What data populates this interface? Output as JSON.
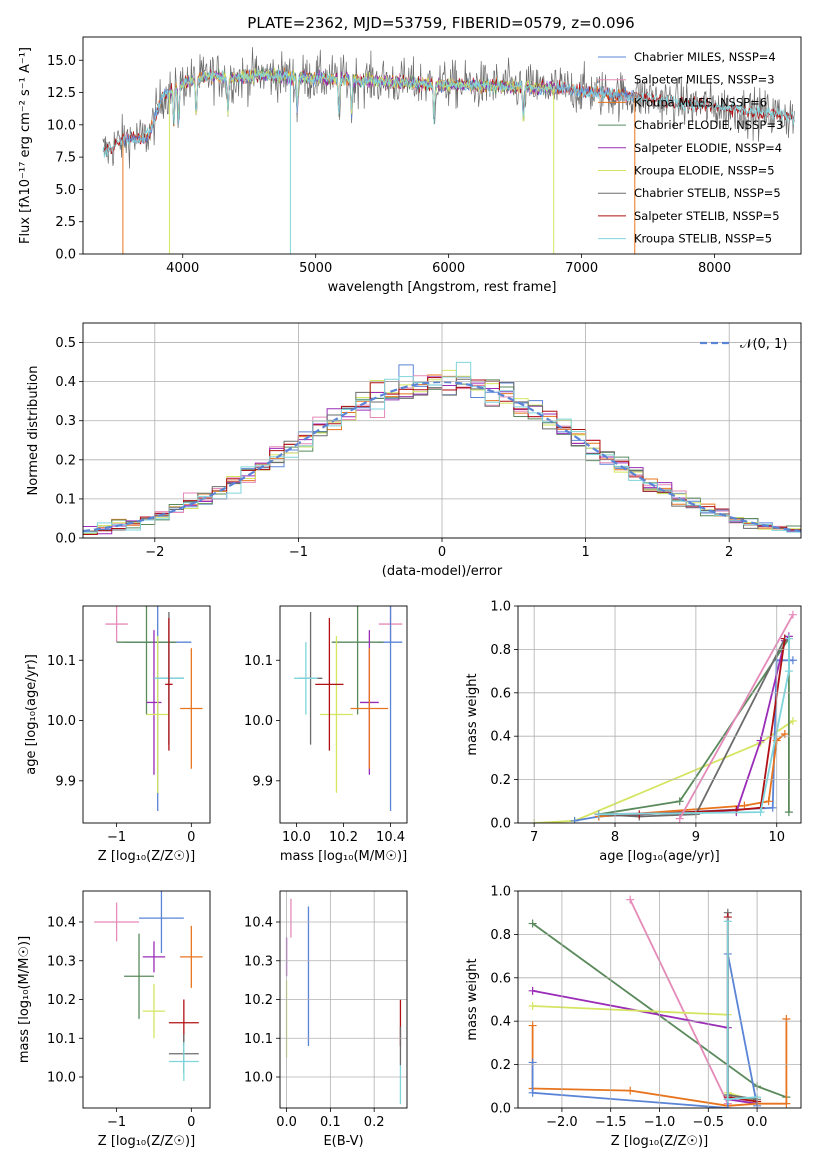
{
  "colors": {
    "blue": "#5a84d6",
    "orange": "#e8751e",
    "pink": "#e58ab9",
    "green": "#5a8a5c",
    "purple": "#9a2cb7",
    "yellow": "#d5e562",
    "gray": "#6b6b6b",
    "red": "#b01014",
    "cyan": "#7fd5dc"
  },
  "chart_data": [
    {
      "id": "spectrum",
      "type": "line",
      "title": "PLATE=2362, MJD=53759, FIBERID=0579, z=0.096",
      "xlabel": "wavelength [Angstrom, rest frame]",
      "ylabel": "Flux [fλ10⁻¹⁷ erg cm⁻² s⁻¹ A⁻¹]",
      "xlim": [
        3250,
        8650
      ],
      "ylim": [
        0,
        16.8
      ],
      "xticks": [
        4000,
        5000,
        6000,
        7000,
        8000
      ],
      "yticks": [
        0.0,
        2.5,
        5.0,
        7.5,
        10.0,
        12.5,
        15.0
      ],
      "grid": false,
      "legend_position": "upper right",
      "series": [
        {
          "name": "Chabrier MILES, NSSP=4",
          "color_key": "blue",
          "x_range": [
            3540,
            7400
          ]
        },
        {
          "name": "Salpeter MILES, NSSP=3",
          "color_key": "pink",
          "x_range": [
            3540,
            7400
          ]
        },
        {
          "name": "Kroupa MILES, NSSP=6",
          "color_key": "orange",
          "x_range": [
            3540,
            7400
          ]
        },
        {
          "name": "Chabrier ELODIE, NSSP=3",
          "color_key": "green",
          "x_range": [
            3900,
            6800
          ]
        },
        {
          "name": "Salpeter ELODIE, NSSP=4",
          "color_key": "purple",
          "x_range": [
            3900,
            6800
          ]
        },
        {
          "name": "Kroupa ELODIE, NSSP=5",
          "color_key": "yellow",
          "x_range": [
            3900,
            6800
          ]
        },
        {
          "name": "Chabrier STELIB, NSSP=5",
          "color_key": "gray",
          "x_range": [
            3400,
            8600
          ]
        },
        {
          "name": "Salpeter STELIB, NSSP=5",
          "color_key": "red",
          "x_range": [
            3400,
            8600
          ]
        },
        {
          "name": "Kroupa STELIB, NSSP=5",
          "color_key": "cyan",
          "x_range": [
            3400,
            8600
          ]
        }
      ],
      "continuum": {
        "x": [
          3450,
          3500,
          3600,
          3700,
          3750,
          3850,
          3900,
          4000,
          4200,
          4400,
          4600,
          4800,
          5000,
          5300,
          5600,
          6000,
          6400,
          6800,
          7000,
          7200,
          7500,
          7800,
          8000,
          8300,
          8600
        ],
        "y": [
          8.0,
          8.6,
          9.0,
          8.9,
          9.3,
          12.3,
          12.5,
          13.2,
          13.8,
          13.6,
          13.9,
          13.7,
          13.6,
          13.5,
          13.3,
          13.1,
          13.0,
          12.8,
          12.7,
          12.4,
          12.1,
          11.6,
          11.4,
          11.0,
          10.6
        ]
      }
    },
    {
      "id": "residuals",
      "type": "step",
      "xlabel": "(data-model)/error",
      "ylabel": "Normed distribution",
      "xlim": [
        -2.5,
        2.5
      ],
      "ylim": [
        0,
        0.55
      ],
      "xticks": [
        -2,
        -1,
        0,
        1,
        2
      ],
      "xtick_labels": [
        "−2",
        "−1",
        "0",
        "1",
        "2"
      ],
      "yticks": [
        0.0,
        0.1,
        0.2,
        0.3,
        0.4,
        0.5
      ],
      "grid": true,
      "legend": [
        {
          "name": "𝒩(0, 1)",
          "color_key": "blue",
          "style": "dashed"
        }
      ],
      "bin_width": 0.1,
      "bin_start": -2.5,
      "noise_amplitude": 0.045
    },
    {
      "id": "age-vs-Z",
      "type": "errorbar",
      "xlabel": "Z [log₁₀(Z/Z☉)]",
      "ylabel": "age  [log₁₀(age/yr)]",
      "xlim": [
        -1.45,
        0.25
      ],
      "ylim": [
        9.83,
        10.19
      ],
      "xticks": [
        -1,
        0
      ],
      "xtick_labels": [
        "−1",
        "0"
      ],
      "yticks": [
        9.9,
        10.0,
        10.1
      ],
      "grid": false,
      "points": [
        {
          "color_key": "pink",
          "x": -1.0,
          "y": 10.16,
          "xerr": 0.15,
          "yerr": 0.03
        },
        {
          "color_key": "blue",
          "x": -0.45,
          "y": 10.13,
          "xerr": 0.45,
          "yerr": 0.28
        },
        {
          "color_key": "green",
          "x": -0.6,
          "y": 10.13,
          "xerr": 0.4,
          "yerr": 0.12
        },
        {
          "color_key": "purple",
          "x": -0.5,
          "y": 10.03,
          "xerr": 0.1,
          "yerr": 0.12
        },
        {
          "color_key": "yellow",
          "x": -0.45,
          "y": 10.01,
          "xerr": 0.15,
          "yerr": 0.13
        },
        {
          "color_key": "gray",
          "x": -0.3,
          "y": 10.07,
          "xerr": 0.2,
          "yerr": 0.11
        },
        {
          "color_key": "cyan",
          "x": -0.3,
          "y": 10.07,
          "xerr": 0.2,
          "yerr": 0.06
        },
        {
          "color_key": "red",
          "x": -0.3,
          "y": 10.06,
          "xerr": 0.05,
          "yerr": 0.11
        },
        {
          "color_key": "orange",
          "x": 0.0,
          "y": 10.02,
          "xerr": 0.15,
          "yerr": 0.1
        }
      ]
    },
    {
      "id": "age-vs-mass",
      "type": "errorbar",
      "xlabel": "mass [log₁₀(M/M☉)]",
      "xlim": [
        9.93,
        10.47
      ],
      "ylim": [
        9.83,
        10.19
      ],
      "xticks": [
        10.0,
        10.2,
        10.4
      ],
      "yticks": [
        9.9,
        10.0,
        10.1
      ],
      "grid": false,
      "points": [
        {
          "color_key": "pink",
          "x": 10.4,
          "y": 10.16,
          "xerr": 0.05,
          "yerr": 0.03
        },
        {
          "color_key": "blue",
          "x": 10.4,
          "y": 10.13,
          "xerr": 0.05,
          "yerr": 0.28
        },
        {
          "color_key": "green",
          "x": 10.26,
          "y": 10.13,
          "xerr": 0.11,
          "yerr": 0.12
        },
        {
          "color_key": "purple",
          "x": 10.31,
          "y": 10.03,
          "xerr": 0.04,
          "yerr": 0.12
        },
        {
          "color_key": "yellow",
          "x": 10.17,
          "y": 10.01,
          "xerr": 0.07,
          "yerr": 0.13
        },
        {
          "color_key": "gray",
          "x": 10.06,
          "y": 10.07,
          "xerr": 0.05,
          "yerr": 0.11
        },
        {
          "color_key": "cyan",
          "x": 10.04,
          "y": 10.07,
          "xerr": 0.05,
          "yerr": 0.06
        },
        {
          "color_key": "red",
          "x": 10.14,
          "y": 10.06,
          "xerr": 0.06,
          "yerr": 0.11
        },
        {
          "color_key": "orange",
          "x": 10.31,
          "y": 10.02,
          "xerr": 0.08,
          "yerr": 0.1
        }
      ]
    },
    {
      "id": "cumulative-age",
      "type": "line",
      "xlabel": "age  [log₁₀(age/yr)]",
      "ylabel": "mass weight",
      "xlim": [
        6.8,
        10.3
      ],
      "ylim": [
        0,
        1
      ],
      "xticks": [
        7,
        8,
        9,
        10
      ],
      "yticks": [
        0.0,
        0.2,
        0.4,
        0.6,
        0.8,
        1.0
      ],
      "grid": true,
      "series": [
        {
          "color_key": "yellow",
          "x": [
            7.0,
            7.5,
            9.8,
            10.2
          ],
          "y": [
            0.0,
            0.01,
            0.37,
            0.47
          ]
        },
        {
          "color_key": "blue",
          "x": [
            7.5,
            7.8,
            9.95,
            10.0,
            10.2
          ],
          "y": [
            0.01,
            0.03,
            0.07,
            0.75,
            0.75
          ]
        },
        {
          "color_key": "orange",
          "x": [
            7.8,
            9.6,
            9.9,
            10.0,
            10.1
          ],
          "y": [
            0.03,
            0.08,
            0.1,
            0.38,
            0.41
          ]
        },
        {
          "color_key": "purple",
          "x": [
            7.8,
            9.5,
            9.8,
            10.1,
            10.15
          ],
          "y": [
            0.04,
            0.05,
            0.38,
            0.84,
            0.86
          ]
        },
        {
          "color_key": "green",
          "x": [
            7.8,
            8.8,
            10.15,
            10.15
          ],
          "y": [
            0.04,
            0.1,
            0.85,
            0.05
          ]
        },
        {
          "color_key": "gray",
          "x": [
            7.8,
            8.3,
            9.0,
            10.1
          ],
          "y": [
            0.04,
            0.03,
            0.04,
            0.85
          ]
        },
        {
          "color_key": "red",
          "x": [
            7.8,
            8.3,
            9.5,
            9.8,
            10.1
          ],
          "y": [
            0.04,
            0.04,
            0.06,
            0.07,
            0.85
          ]
        },
        {
          "color_key": "cyan",
          "x": [
            7.8,
            9.8,
            10.15,
            10.15
          ],
          "y": [
            0.04,
            0.05,
            0.7,
            0.85
          ]
        },
        {
          "color_key": "pink",
          "x": [
            8.8,
            10.2
          ],
          "y": [
            0.02,
            0.96
          ]
        }
      ]
    },
    {
      "id": "mass-vs-Z",
      "type": "errorbar",
      "xlabel": "Z [log₁₀(Z/Z☉)]",
      "ylabel": "mass [log₁₀(M/M☉)]",
      "xlim": [
        -1.45,
        0.25
      ],
      "ylim": [
        9.92,
        10.48
      ],
      "xticks": [
        -1,
        0
      ],
      "xtick_labels": [
        "−1",
        "0"
      ],
      "yticks": [
        10.0,
        10.1,
        10.2,
        10.3,
        10.4
      ],
      "grid": false,
      "points": [
        {
          "color_key": "pink",
          "x": -1.0,
          "y": 10.4,
          "xerr": 0.3,
          "yerr": 0.05
        },
        {
          "color_key": "blue",
          "x": -0.4,
          "y": 10.41,
          "xerr": 0.3,
          "yerr": 0.09
        },
        {
          "color_key": "orange",
          "x": 0.0,
          "y": 10.31,
          "xerr": 0.15,
          "yerr": 0.08
        },
        {
          "color_key": "purple",
          "x": -0.5,
          "y": 10.31,
          "xerr": 0.15,
          "yerr": 0.04
        },
        {
          "color_key": "green",
          "x": -0.7,
          "y": 10.26,
          "xerr": 0.2,
          "yerr": 0.11
        },
        {
          "color_key": "yellow",
          "x": -0.5,
          "y": 10.17,
          "xerr": 0.15,
          "yerr": 0.07
        },
        {
          "color_key": "red",
          "x": -0.1,
          "y": 10.14,
          "xerr": 0.2,
          "yerr": 0.06
        },
        {
          "color_key": "gray",
          "x": -0.1,
          "y": 10.06,
          "xerr": 0.2,
          "yerr": 0.05
        },
        {
          "color_key": "cyan",
          "x": -0.1,
          "y": 10.04,
          "xerr": 0.2,
          "yerr": 0.05
        }
      ]
    },
    {
      "id": "mass-vs-ebv",
      "type": "errorbar",
      "xlabel": "E(B-V)",
      "xlim": [
        -0.015,
        0.275
      ],
      "ylim": [
        9.92,
        10.48
      ],
      "xticks": [
        0.0,
        0.1,
        0.2
      ],
      "yticks": [
        10.0,
        10.1,
        10.2,
        10.3,
        10.4
      ],
      "grid": true,
      "points": [
        {
          "color_key": "pink",
          "x": 0.01,
          "y": 10.41,
          "xerr": 0,
          "yerr": 0.05
        },
        {
          "color_key": "blue",
          "x": 0.05,
          "y": 10.26,
          "xerr": 0,
          "yerr": 0.18
        },
        {
          "color_key": "purple",
          "x": 0.0,
          "y": 10.31,
          "xerr": 0,
          "yerr": 0.05
        },
        {
          "color_key": "yellow",
          "x": 0.0,
          "y": 10.15,
          "xerr": 0,
          "yerr": 0.1
        },
        {
          "color_key": "red",
          "x": 0.26,
          "y": 10.14,
          "xerr": 0,
          "yerr": 0.06
        },
        {
          "color_key": "gray",
          "x": 0.26,
          "y": 10.08,
          "xerr": 0,
          "yerr": 0.05
        },
        {
          "color_key": "cyan",
          "x": 0.26,
          "y": 9.98,
          "xerr": 0,
          "yerr": 0.05
        }
      ]
    },
    {
      "id": "cumulative-Z",
      "type": "line",
      "xlabel": "Z [log₁₀(Z/Z☉)]",
      "ylabel": "mass weight",
      "xlim": [
        -2.45,
        0.45
      ],
      "ylim": [
        0,
        1
      ],
      "xticks": [
        -2.0,
        -1.5,
        -1.0,
        -0.5,
        0.0
      ],
      "xtick_labels": [
        "−2.0",
        "−1.5",
        "−1.0",
        "−0.5",
        "0.0"
      ],
      "yticks": [
        0.0,
        0.2,
        0.4,
        0.6,
        0.8,
        1.0
      ],
      "grid": true,
      "series": [
        {
          "color_key": "green",
          "x": [
            -2.3,
            0.0,
            0.3
          ],
          "y": [
            0.85,
            0.1,
            0.05
          ]
        },
        {
          "color_key": "pink",
          "x": [
            -1.3,
            -0.3
          ],
          "y": [
            0.96,
            0.02
          ]
        },
        {
          "color_key": "purple",
          "x": [
            -2.3,
            -0.3,
            -0.3,
            0.0
          ],
          "y": [
            0.54,
            0.37,
            0.04,
            0.02
          ]
        },
        {
          "color_key": "yellow",
          "x": [
            -2.3,
            -0.3,
            -0.3,
            0.0
          ],
          "y": [
            0.47,
            0.43,
            0.07,
            0.03
          ]
        },
        {
          "color_key": "orange",
          "x": [
            -2.3,
            -2.3,
            -1.3,
            -0.3,
            0.0,
            0.3,
            0.3
          ],
          "y": [
            0.38,
            0.09,
            0.08,
            0.01,
            0.02,
            0.02,
            0.41
          ]
        },
        {
          "color_key": "blue",
          "x": [
            -2.3,
            -2.3,
            -0.3,
            -0.3,
            0.0
          ],
          "y": [
            0.21,
            0.07,
            0.0,
            0.71,
            0.01
          ]
        },
        {
          "color_key": "gray",
          "x": [
            -0.3,
            -0.3,
            0.0
          ],
          "y": [
            0.9,
            0.06,
            0.04
          ]
        },
        {
          "color_key": "red",
          "x": [
            -0.3,
            -0.3,
            0.0
          ],
          "y": [
            0.88,
            0.05,
            0.03
          ]
        },
        {
          "color_key": "cyan",
          "x": [
            -0.3,
            -0.3,
            0.0
          ],
          "y": [
            0.86,
            0.04,
            0.05
          ]
        }
      ]
    }
  ]
}
